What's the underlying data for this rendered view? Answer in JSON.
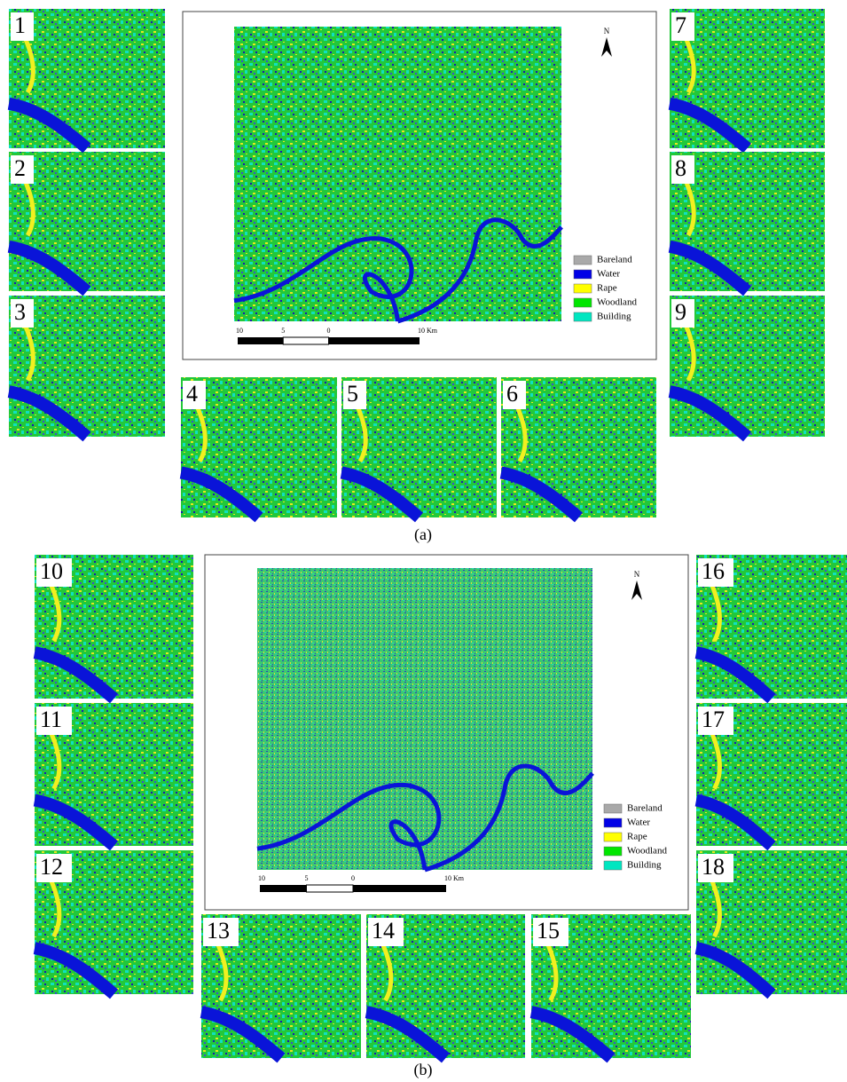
{
  "panels": [
    {
      "caption": "(a)",
      "tiles": [
        "1",
        "2",
        "3",
        "4",
        "5",
        "6",
        "7",
        "8",
        "9"
      ],
      "legend": [
        {
          "name": "Bareland",
          "color": "#a9a9a9"
        },
        {
          "name": "Water",
          "color": "#0000e6"
        },
        {
          "name": "Rape",
          "color": "#ffff00"
        },
        {
          "name": "Woodland",
          "color": "#00e600"
        },
        {
          "name": "Building",
          "color": "#00e6c0"
        }
      ],
      "scale": [
        "10",
        "5",
        "0",
        "10 Km"
      ],
      "north": "N"
    },
    {
      "caption": "(b)",
      "tiles": [
        "10",
        "11",
        "12",
        "13",
        "14",
        "15",
        "16",
        "17",
        "18"
      ],
      "legend": [
        {
          "name": "Bareland",
          "color": "#a9a9a9"
        },
        {
          "name": "Water",
          "color": "#0000e6"
        },
        {
          "name": "Rape",
          "color": "#ffff00"
        },
        {
          "name": "Woodland",
          "color": "#00e600"
        },
        {
          "name": "Building",
          "color": "#00e6c0"
        }
      ],
      "scale": [
        "10",
        "5",
        "0",
        "10 Km"
      ],
      "north": "N"
    }
  ]
}
